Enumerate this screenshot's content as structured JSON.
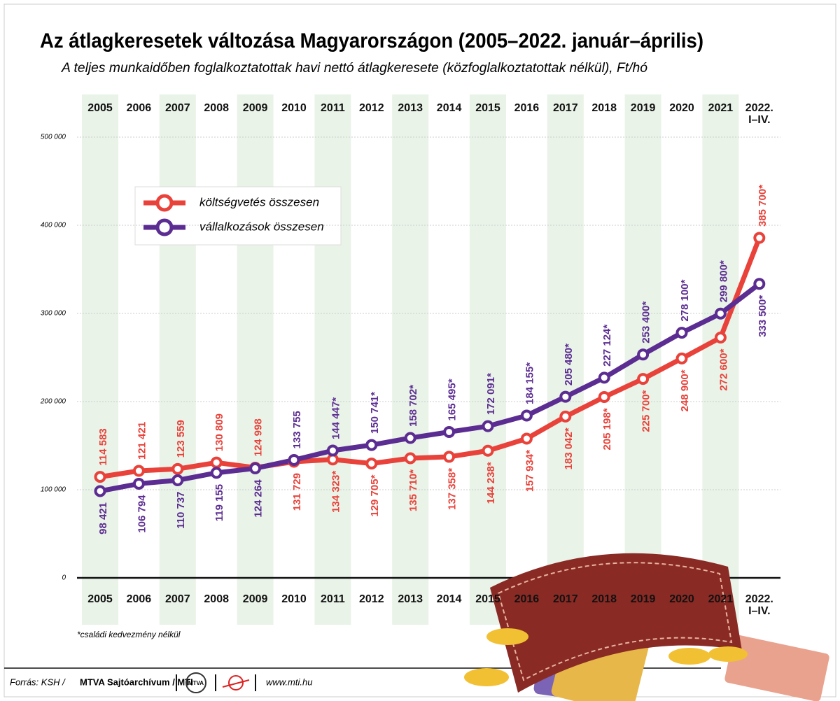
{
  "chart_data": {
    "type": "line",
    "title": "Az átlagkeresetek változása Magyarországon (2005–2022. január–április)",
    "subtitle": "A teljes munkaidőben foglalkoztatottak havi nettó átlagkeresete (közfoglalkoztatottak nélkül), Ft/hó",
    "categories": [
      "2005",
      "2006",
      "2007",
      "2008",
      "2009",
      "2010",
      "2011",
      "2012",
      "2013",
      "2014",
      "2015",
      "2016",
      "2017",
      "2018",
      "2019",
      "2020",
      "2021",
      "2022. I–IV."
    ],
    "series": [
      {
        "name": "költségvetés összesen",
        "color": "#e8423a",
        "values": [
          114583,
          121421,
          123559,
          130809,
          124998,
          131729,
          134323,
          129705,
          135710,
          137358,
          144238,
          157934,
          183042,
          205198,
          225700,
          248900,
          272600,
          385700
        ],
        "value_labels": [
          "114 583",
          "121 421",
          "123 559",
          "130 809",
          "124 998",
          "131 729",
          "134 323*",
          "129 705*",
          "135 710*",
          "137 358*",
          "144 238*",
          "157 934*",
          "183 042*",
          "205 198*",
          "225 700*",
          "248 900*",
          "272 600*",
          "385 700*"
        ]
      },
      {
        "name": "vállalkozások összesen",
        "color": "#5b2c91",
        "values": [
          98421,
          106794,
          110737,
          119155,
          124264,
          133755,
          144447,
          150741,
          158702,
          165495,
          172091,
          184155,
          205480,
          227124,
          253400,
          278100,
          299800,
          333500
        ],
        "value_labels": [
          "98 421",
          "106 794",
          "110 737",
          "119 155",
          "124 264",
          "133 755",
          "144 447*",
          "150 741*",
          "158 702*",
          "165 495*",
          "172 091*",
          "184 155*",
          "205 480*",
          "227 124*",
          "253 400*",
          "278 100*",
          "299 800*",
          "333 500*"
        ]
      }
    ],
    "ylim": [
      0,
      500000
    ],
    "yticks": [
      0,
      {
        "value": 100000,
        "label": "100 000"
      },
      {
        "value": 200000,
        "label": "200 000"
      },
      {
        "value": 300000,
        "label": "300 000"
      },
      {
        "value": 400000,
        "label": "400 000"
      },
      {
        "value": 500000,
        "label": "500 000"
      }
    ],
    "grid": true,
    "footnote": "*családi kedvezmény nélkül",
    "source_prefix": "Forrás: KSH /",
    "source_bold": "MTVA Sajtóarchívum / MTI",
    "logo": "MTVA",
    "website": "www.mti.hu"
  }
}
